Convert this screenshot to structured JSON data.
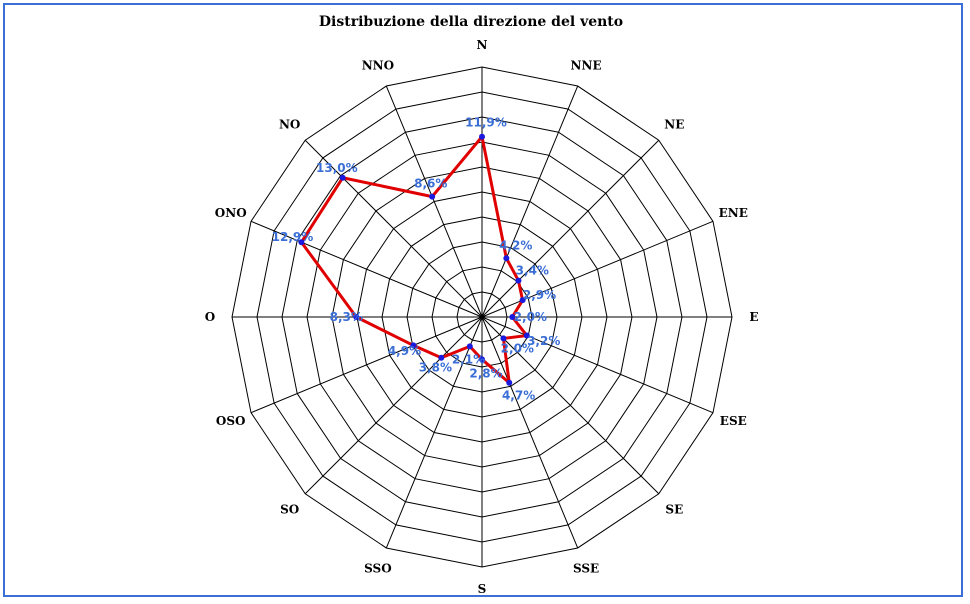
{
  "chart_data": {
    "type": "radar",
    "title": "Distribuzione della direzione del vento",
    "directions": [
      "N",
      "NNE",
      "NE",
      "ENE",
      "E",
      "ESE",
      "SE",
      "SSE",
      "S",
      "SSO",
      "SO",
      "OSO",
      "O",
      "ONO",
      "NO",
      "NNO"
    ],
    "values": [
      11.9,
      4.2,
      3.4,
      2.9,
      2.0,
      3.2,
      2.0,
      4.7,
      2.8,
      2.1,
      3.8,
      4.9,
      8.3,
      12.9,
      13.0,
      8.6
    ],
    "value_labels": [
      "11,9%",
      "4,2%",
      "3,4%",
      "2,9%",
      "2,0%",
      "3,2%",
      "2,0%",
      "4,7%",
      "2,8%",
      "2,1%",
      "3,8%",
      "4,9%",
      "8,3%",
      "12,9%",
      "13,0%",
      "8,6%"
    ],
    "rmax": 16.5,
    "rings": 10,
    "grid": true,
    "series_color": "#e00000",
    "marker_color": "#1a1adf",
    "label_color": "#3b6fd6",
    "frame_color": "#3b6fd6"
  }
}
